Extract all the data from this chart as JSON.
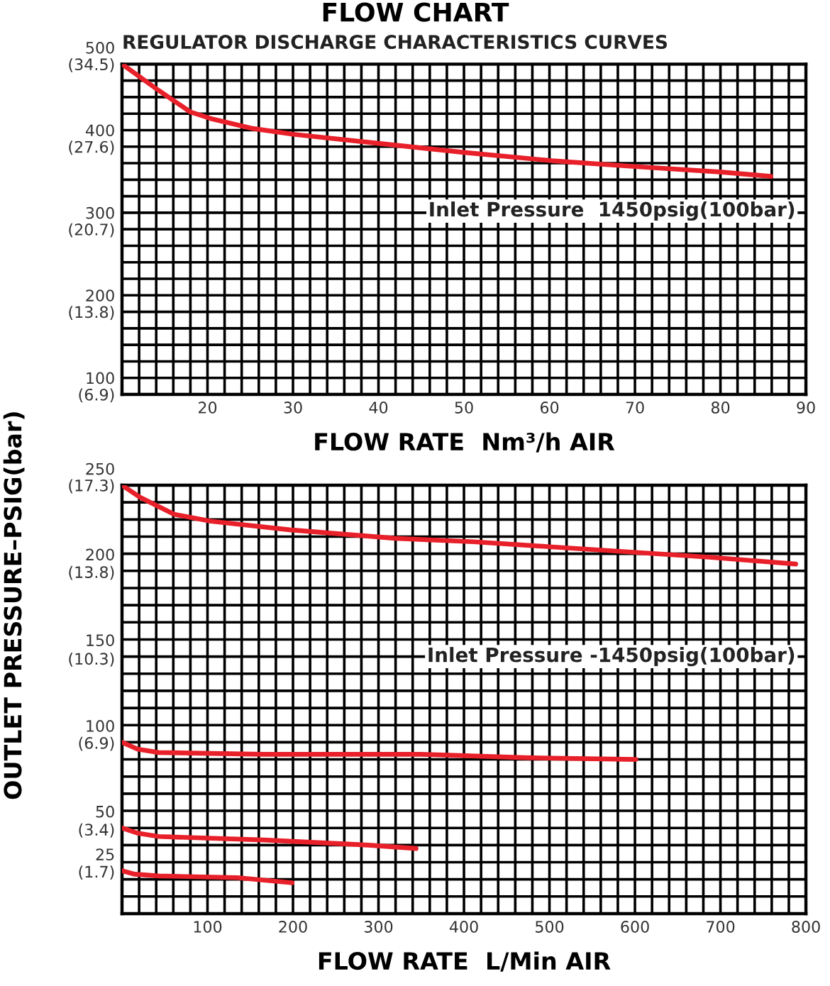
{
  "chart_data": [
    {
      "type": "line",
      "title": "FLOW CHART",
      "subtitle": "REGULATOR DISCHARGE CHARACTERISTICS CURVES",
      "xlabel": "FLOW RATE  Nm³/h AIR",
      "annotations": [
        "Inlet Pressure  1450psig(100bar)"
      ],
      "xlim": [
        10,
        90
      ],
      "xticks": [
        20,
        30,
        40,
        50,
        60,
        70,
        80,
        90
      ],
      "ylim": [
        100,
        500
      ],
      "yticks": [
        500,
        400,
        300,
        200,
        100
      ],
      "y2lim": [
        6.9,
        34.5
      ],
      "y2ticks": [
        {
          "value": 34.5,
          "label": "(34.5)"
        },
        {
          "value": 27.6,
          "label": "(27.6)"
        },
        {
          "value": 20.7,
          "label": "(20.7)"
        },
        {
          "value": 13.8,
          "label": "(13.8)"
        },
        {
          "value": 6.9,
          "label": "(6.9)"
        }
      ],
      "grid": true,
      "marker": "none",
      "line_style": "solid",
      "series": [
        {
          "color": "#e8202a",
          "x": [
            10,
            14.3,
            18,
            20.4,
            25.3,
            30,
            40,
            50,
            60.3,
            70,
            80.4,
            85.9
          ],
          "values": [
            500,
            468,
            442,
            434,
            422,
            415,
            404,
            393,
            383,
            376,
            369,
            364
          ]
        }
      ]
    },
    {
      "type": "line",
      "xlabel": "FLOW RATE  L/Min AIR",
      "y2label": "OUTLET PRESSURE–PSIG(bar)",
      "annotations": [
        "Inlet Pressure -1450psig(100bar)"
      ],
      "xlim": [
        0,
        800
      ],
      "xticks": [
        100,
        200,
        300,
        400,
        500,
        600,
        700,
        800
      ],
      "ylim": [
        0,
        250
      ],
      "yticks": [
        250,
        200,
        150,
        100,
        50,
        25
      ],
      "y2lim": [
        0,
        17.3
      ],
      "y2ticks": [
        {
          "value": 17.3,
          "label": "(17.3)"
        },
        {
          "value": 13.8,
          "label": "(13.8)"
        },
        {
          "value": 10.3,
          "label": "(10.3)"
        },
        {
          "value": 6.9,
          "label": "(6.9)"
        },
        {
          "value": 3.4,
          "label": "(3.4)"
        },
        {
          "value": 1.7,
          "label": "(1.7)"
        }
      ],
      "grid": true,
      "marker": "none",
      "line_style": "solid",
      "series": [
        {
          "color": "#e8202a",
          "x": [
            0,
            21,
            61,
            104,
            196,
            319,
            411,
            503,
            595,
            687,
            788
          ],
          "values": [
            250,
            243,
            233,
            229,
            224,
            219,
            217,
            214,
            211,
            208,
            204
          ]
        },
        {
          "color": "#e8202a",
          "x": [
            0,
            18,
            43,
            166,
            350,
            472,
            601
          ],
          "values": [
            100,
            96,
            94,
            93,
            93,
            91,
            90
          ]
        },
        {
          "color": "#e8202a",
          "x": [
            0,
            18,
            43,
            166,
            288,
            344
          ],
          "values": [
            50,
            47,
            45,
            43,
            40,
            38
          ]
        },
        {
          "color": "#e8202a",
          "x": [
            0,
            15,
            43,
            135,
            199
          ],
          "values": [
            25,
            23,
            22,
            21,
            18
          ]
        }
      ]
    }
  ]
}
